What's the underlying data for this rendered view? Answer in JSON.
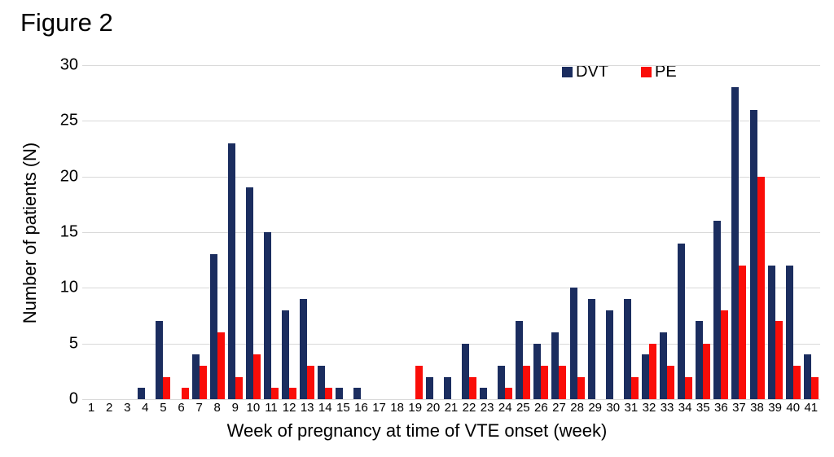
{
  "figure_title": "Figure 2",
  "colors": {
    "dvt": "#1b2d5f",
    "pe": "#fa0d08",
    "gridline": "#d9d9d9"
  },
  "legend": {
    "items": [
      {
        "label": "DVT",
        "color": "#1b2d5f"
      },
      {
        "label": "PE",
        "color": "#fa0d08"
      }
    ]
  },
  "chart_data": {
    "type": "bar",
    "title": "Figure 2",
    "xlabel": "Week of pregnancy at time of VTE onset (week)",
    "ylabel": "Number of patients (N)",
    "ylim": [
      0,
      30
    ],
    "yticks": [
      0,
      5,
      10,
      15,
      20,
      25,
      30
    ],
    "grid": true,
    "legend_position": "top-right",
    "categories": [
      "1",
      "2",
      "3",
      "4",
      "5",
      "6",
      "7",
      "8",
      "9",
      "10",
      "11",
      "12",
      "13",
      "14",
      "15",
      "16",
      "17",
      "18",
      "19",
      "20",
      "21",
      "22",
      "23",
      "24",
      "25",
      "26",
      "27",
      "28",
      "29",
      "30",
      "31",
      "32",
      "33",
      "34",
      "35",
      "36",
      "37",
      "38",
      "39",
      "40",
      "41"
    ],
    "series": [
      {
        "name": "DVT",
        "color": "#1b2d5f",
        "values": [
          0,
          0,
          0,
          1,
          7,
          0,
          4,
          13,
          23,
          19,
          15,
          8,
          9,
          3,
          1,
          1,
          0,
          0,
          0,
          2,
          2,
          5,
          1,
          3,
          7,
          5,
          6,
          10,
          9,
          8,
          9,
          4,
          6,
          14,
          7,
          16,
          28,
          26,
          12,
          12,
          4
        ]
      },
      {
        "name": "PE",
        "color": "#fa0d08",
        "values": [
          0,
          0,
          0,
          0,
          2,
          1,
          3,
          6,
          2,
          4,
          1,
          1,
          3,
          1,
          0,
          0,
          0,
          0,
          3,
          0,
          0,
          2,
          0,
          1,
          3,
          3,
          3,
          2,
          0,
          0,
          2,
          5,
          3,
          2,
          5,
          8,
          12,
          20,
          7,
          3,
          2
        ]
      }
    ]
  }
}
